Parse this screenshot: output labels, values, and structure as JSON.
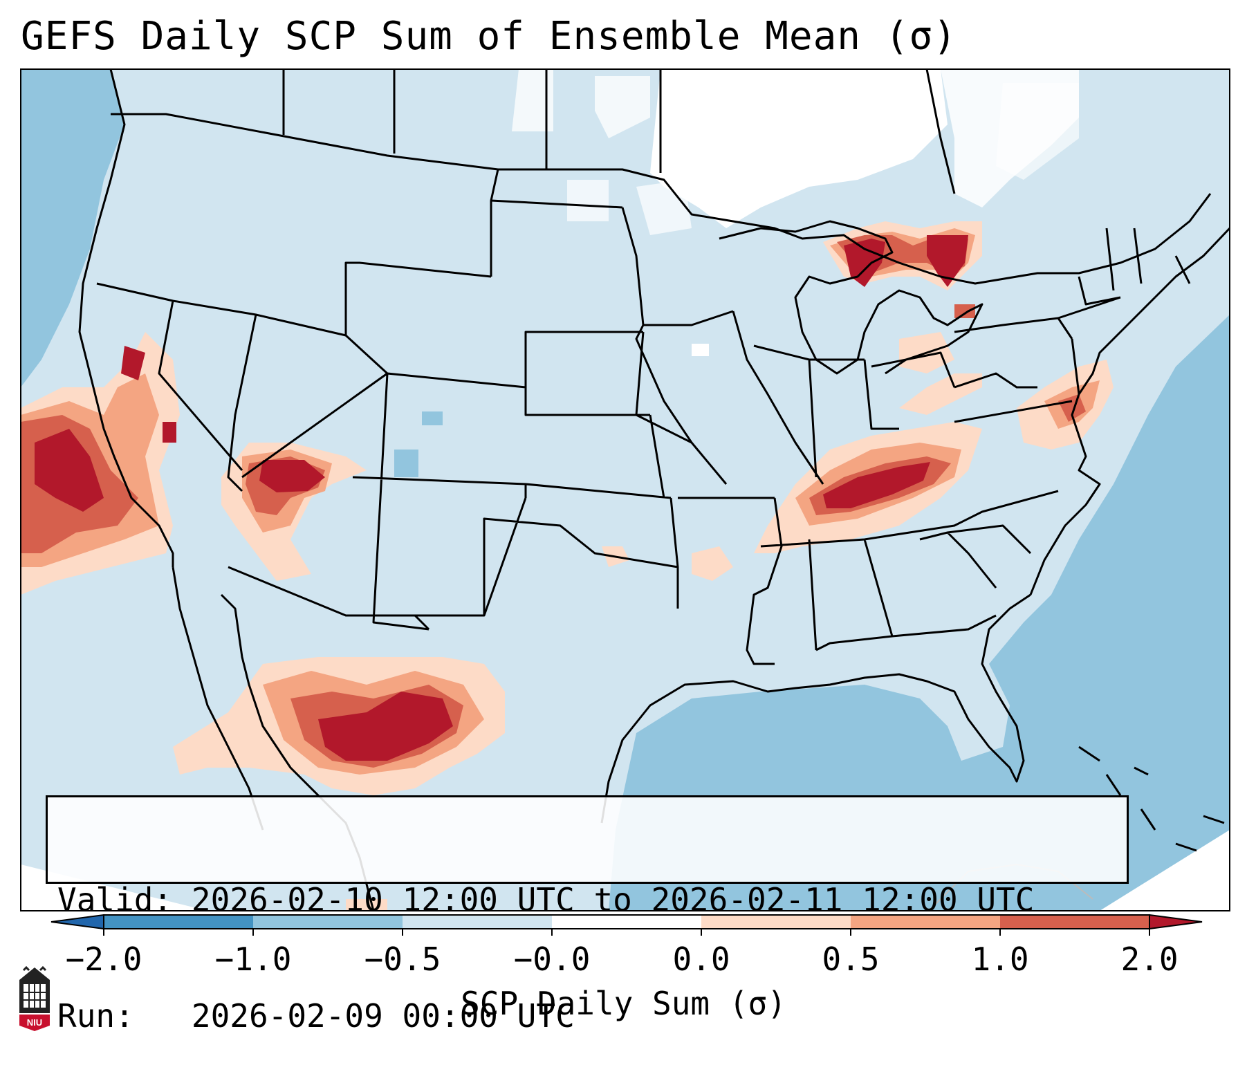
{
  "title": "GEFS Daily SCP Sum of Ensemble Mean (σ)",
  "info": {
    "valid_label": "Valid:",
    "valid_value": "2026-02-10 12:00 UTC to 2026-02-11 12:00 UTC",
    "run_label": "Run:",
    "run_value": "2026-02-09 00:00 UTC"
  },
  "colorbar": {
    "label": "SCP Daily Sum (σ)",
    "ticks": [
      "−2.0",
      "−1.0",
      "−0.5",
      "−0.0",
      "0.0",
      "0.5",
      "1.0",
      "2.0"
    ],
    "bins": [
      {
        "range": "<-2.0",
        "color": "#2166ac"
      },
      {
        "range": "-2.0 to -1.0",
        "color": "#4393c3"
      },
      {
        "range": "-1.0 to -0.5",
        "color": "#92c5de"
      },
      {
        "range": "-0.5 to -0.0",
        "color": "#d1e5f0"
      },
      {
        "range": "-0.0 to 0.0",
        "color": "#ffffff"
      },
      {
        "range": "0.0 to 0.5",
        "color": "#fddbc7"
      },
      {
        "range": "0.5 to 1.0",
        "color": "#f4a582"
      },
      {
        "range": "1.0 to 2.0",
        "color": "#d6604d"
      },
      {
        "range": ">2.0",
        "color": "#b2182b"
      }
    ]
  },
  "logo": {
    "text": "NIU"
  },
  "colors": {
    "background_field": "#d1e5f0",
    "ocean_field": "#92c5de",
    "high_anomaly": "#b2182b",
    "moderate_anomaly": "#d6604d",
    "low_anomaly": "#f4a582",
    "slight_anomaly": "#fddbc7",
    "border": "#000000"
  },
  "anomaly_regions": [
    {
      "name": "Central California",
      "level": "high"
    },
    {
      "name": "Southern Utah / Northern Arizona",
      "level": "high"
    },
    {
      "name": "Northern Mexico",
      "level": "high"
    },
    {
      "name": "Kentucky / Tennessee",
      "level": "high"
    },
    {
      "name": "Northern Michigan / Lake Huron",
      "level": "high"
    },
    {
      "name": "Mid-Atlantic coast",
      "level": "moderate"
    }
  ]
}
